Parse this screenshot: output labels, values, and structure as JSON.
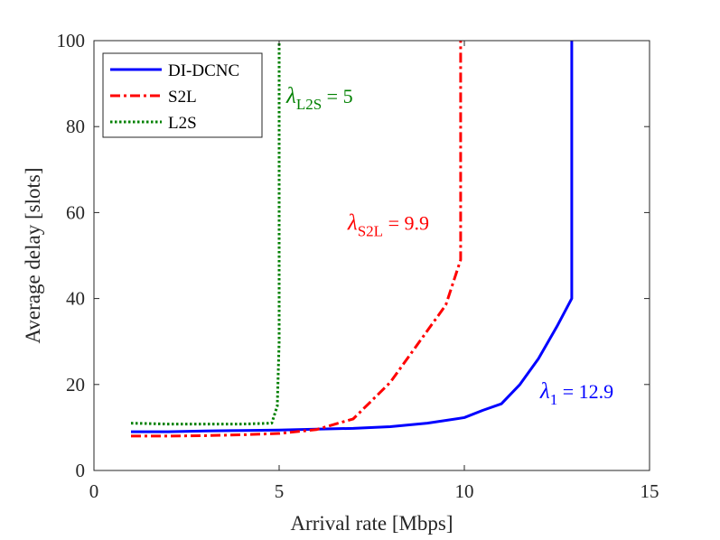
{
  "chart_data": {
    "type": "line",
    "title": "",
    "xlabel": "Arrival rate [Mbps]",
    "ylabel": "Average delay [slots]",
    "xlim": [
      0,
      15
    ],
    "ylim": [
      0,
      100
    ],
    "xticks": [
      0,
      5,
      10,
      15
    ],
    "yticks": [
      0,
      20,
      40,
      60,
      80,
      100
    ],
    "grid": false,
    "legend_position": "top-left",
    "series": [
      {
        "name": "DI-DCNC",
        "color": "#0000ff",
        "style": "solid",
        "x": [
          1,
          2,
          3,
          4,
          5,
          6,
          7,
          8,
          9,
          10,
          10.5,
          11,
          11.5,
          12,
          12.5,
          12.9,
          12.9
        ],
        "y": [
          9,
          9,
          9.2,
          9.3,
          9.4,
          9.6,
          9.8,
          10.2,
          11,
          12.3,
          14,
          15.5,
          20,
          26,
          33.5,
          40,
          100
        ]
      },
      {
        "name": "S2L",
        "color": "#ff0000",
        "style": "dash-dot",
        "x": [
          1,
          2,
          3,
          4,
          5,
          6,
          7,
          8,
          9,
          9.5,
          9.9,
          9.9
        ],
        "y": [
          8,
          8,
          8.1,
          8.3,
          8.6,
          9.5,
          12,
          20.5,
          32.5,
          38.5,
          49,
          100
        ]
      },
      {
        "name": "L2S",
        "color": "#008000",
        "style": "dotted",
        "x": [
          1,
          2,
          3,
          4,
          4.8,
          4.95,
          5,
          5
        ],
        "y": [
          11,
          10.8,
          10.8,
          10.8,
          11,
          15,
          30,
          100
        ]
      }
    ],
    "annotations": [
      {
        "text": "λ",
        "subscript": "L2S",
        "suffix": " = 5",
        "color": "#008000",
        "series": "L2S"
      },
      {
        "text": "λ",
        "subscript": "S2L",
        "suffix": " = 9.9",
        "color": "#ff0000",
        "series": "S2L"
      },
      {
        "text": "λ",
        "subscript": "1",
        "suffix": " = 12.9",
        "color": "#0000ff",
        "series": "DI-DCNC"
      }
    ]
  }
}
